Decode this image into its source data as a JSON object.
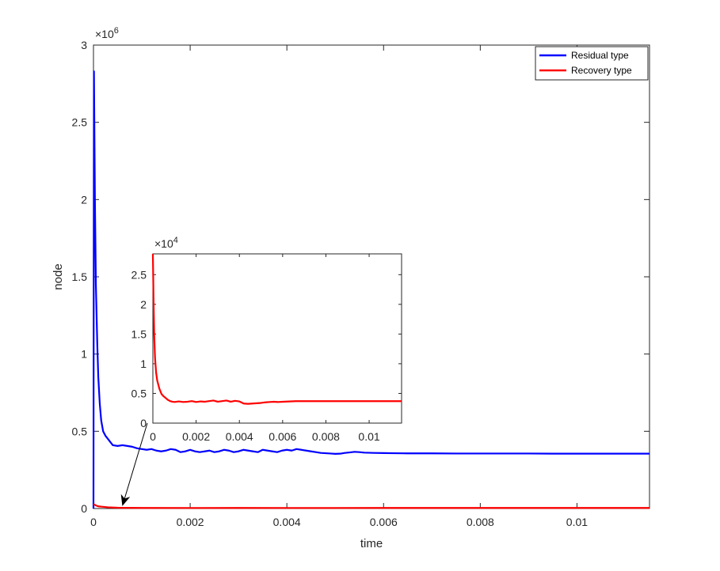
{
  "chart_data": [
    {
      "type": "line",
      "xlabel": "time",
      "ylabel": "node",
      "xlim": [
        0,
        0.0115
      ],
      "ylim": [
        0,
        3000000
      ],
      "y_exponent_label": "×10^6",
      "y_exponent_base": "×10",
      "y_exponent_power": "6",
      "x_ticks": [
        0,
        0.002,
        0.004,
        0.006,
        0.008,
        0.01
      ],
      "x_tick_labels": [
        "0",
        "0.002",
        "0.004",
        "0.006",
        "0.008",
        "0.01"
      ],
      "y_ticks": [
        0,
        500000,
        1000000,
        1500000,
        2000000,
        2500000,
        3000000
      ],
      "y_tick_labels": [
        "0",
        "0.5",
        "1",
        "1.5",
        "2",
        "2.5",
        "3"
      ],
      "grid": false,
      "legend_position": "top-right",
      "series": [
        {
          "name": "Residual type",
          "color": "#0000ff",
          "x": [
            0,
            1e-05,
            3e-05,
            5e-05,
            8e-05,
            0.0001,
            0.00013,
            0.00016,
            0.0002,
            0.00025,
            0.0003,
            0.00035,
            0.0004,
            0.0005,
            0.0006,
            0.0007,
            0.0008,
            0.0009,
            0.001,
            0.0011,
            0.0012,
            0.0013,
            0.0014,
            0.0015,
            0.0016,
            0.0017,
            0.0018,
            0.0019,
            0.002,
            0.0021,
            0.0022,
            0.0023,
            0.0024,
            0.0025,
            0.0026,
            0.0027,
            0.0028,
            0.0029,
            0.003,
            0.0031,
            0.0032,
            0.0033,
            0.0034,
            0.0035,
            0.0036,
            0.0037,
            0.0038,
            0.0039,
            0.004,
            0.0041,
            0.0042,
            0.0043,
            0.0044,
            0.0045,
            0.0046,
            0.0047,
            0.0048,
            0.0049,
            0.005,
            0.0051,
            0.0052,
            0.0053,
            0.0054,
            0.0055,
            0.0056,
            0.0058,
            0.006,
            0.0062,
            0.0065,
            0.007,
            0.0075,
            0.008,
            0.0085,
            0.009,
            0.0095,
            0.01,
            0.0105,
            0.011,
            0.0115
          ],
          "values": [
            0,
            2830000,
            2000000,
            1450000,
            1050000,
            850000,
            680000,
            570000,
            500000,
            470000,
            450000,
            430000,
            410000,
            405000,
            410000,
            405000,
            400000,
            390000,
            385000,
            380000,
            385000,
            375000,
            370000,
            375000,
            385000,
            380000,
            365000,
            370000,
            380000,
            370000,
            365000,
            370000,
            375000,
            365000,
            370000,
            380000,
            375000,
            365000,
            370000,
            380000,
            375000,
            370000,
            365000,
            380000,
            375000,
            370000,
            365000,
            375000,
            380000,
            375000,
            385000,
            380000,
            375000,
            370000,
            365000,
            360000,
            358000,
            356000,
            354000,
            355000,
            360000,
            363000,
            367000,
            365000,
            362000,
            360000,
            359000,
            358000,
            357000,
            357000,
            356000,
            356000,
            356000,
            356000,
            355000,
            355000,
            355000,
            355000,
            355000
          ]
        },
        {
          "name": "Recovery type",
          "color": "#ff0000",
          "x": [
            0,
            5e-05,
            0.0001,
            0.0003,
            0.0005,
            0.001,
            0.002,
            0.003,
            0.004,
            0.005,
            0.006,
            0.007,
            0.008,
            0.009,
            0.01,
            0.011,
            0.0115
          ],
          "values": [
            28500,
            20000,
            14000,
            8000,
            5000,
            3800,
            3600,
            3700,
            3500,
            3600,
            3700,
            3700,
            3700,
            3700,
            3700,
            3700,
            3700
          ]
        }
      ]
    },
    {
      "type": "line",
      "inset": true,
      "xlim": [
        0,
        0.0115
      ],
      "ylim": [
        0,
        28500
      ],
      "y_exponent_label": "×10^4",
      "y_exponent_base": "×10",
      "y_exponent_power": "4",
      "x_ticks": [
        0,
        0.002,
        0.004,
        0.006,
        0.008,
        0.01
      ],
      "x_tick_labels": [
        "0",
        "0.002",
        "0.004",
        "0.006",
        "0.008",
        "0.01"
      ],
      "y_ticks": [
        0,
        5000,
        10000,
        15000,
        20000,
        25000
      ],
      "y_tick_labels": [
        "0",
        "0.5",
        "1",
        "1.5",
        "2",
        "2.5"
      ],
      "series": [
        {
          "color": "#ff0000",
          "x": [
            0,
            3e-05,
            6e-05,
            0.0001,
            0.00015,
            0.0002,
            0.0003,
            0.0004,
            0.0005,
            0.0006,
            0.0007,
            0.0008,
            0.0009,
            0.001,
            0.0012,
            0.0014,
            0.0016,
            0.0018,
            0.002,
            0.0022,
            0.0024,
            0.0026,
            0.0028,
            0.003,
            0.0032,
            0.0034,
            0.0036,
            0.0038,
            0.004,
            0.0042,
            0.0044,
            0.0046,
            0.0048,
            0.005,
            0.0052,
            0.0054,
            0.0056,
            0.0058,
            0.006,
            0.0063,
            0.0066,
            0.007,
            0.0075,
            0.008,
            0.0085,
            0.009,
            0.0095,
            0.01,
            0.0105,
            0.011,
            0.0115
          ],
          "values": [
            28500,
            21000,
            15000,
            11000,
            8500,
            7200,
            5800,
            4900,
            4500,
            4200,
            3900,
            3700,
            3600,
            3550,
            3650,
            3550,
            3600,
            3700,
            3550,
            3650,
            3600,
            3700,
            3800,
            3600,
            3700,
            3800,
            3600,
            3750,
            3650,
            3300,
            3250,
            3300,
            3350,
            3400,
            3500,
            3550,
            3600,
            3550,
            3600,
            3650,
            3700,
            3700,
            3700,
            3700,
            3700,
            3700,
            3700,
            3700,
            3700,
            3700,
            3700
          ]
        }
      ]
    }
  ]
}
